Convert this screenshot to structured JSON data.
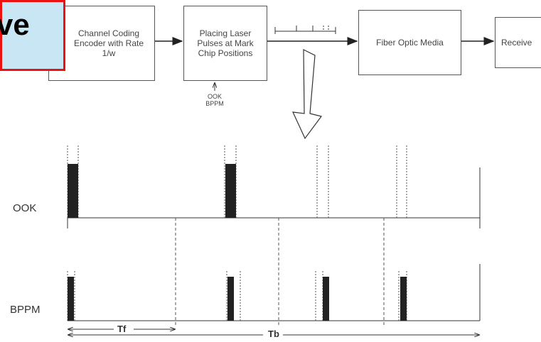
{
  "blocks": {
    "encoder": "Channel Coding Encoder with Rate 1/w",
    "placing": "Placing Laser Pulses at Mark Chip Positions",
    "fiber": "Fiber Optic Media",
    "receiver": "Receive"
  },
  "highlight_text": "ve",
  "modulation_labels": {
    "ook": "OOK",
    "bppm": "BPPM"
  },
  "rows": {
    "ook": "OOK",
    "bppm": "BPPM"
  },
  "timing": {
    "tf": "Tf",
    "tb": "Tb"
  }
}
